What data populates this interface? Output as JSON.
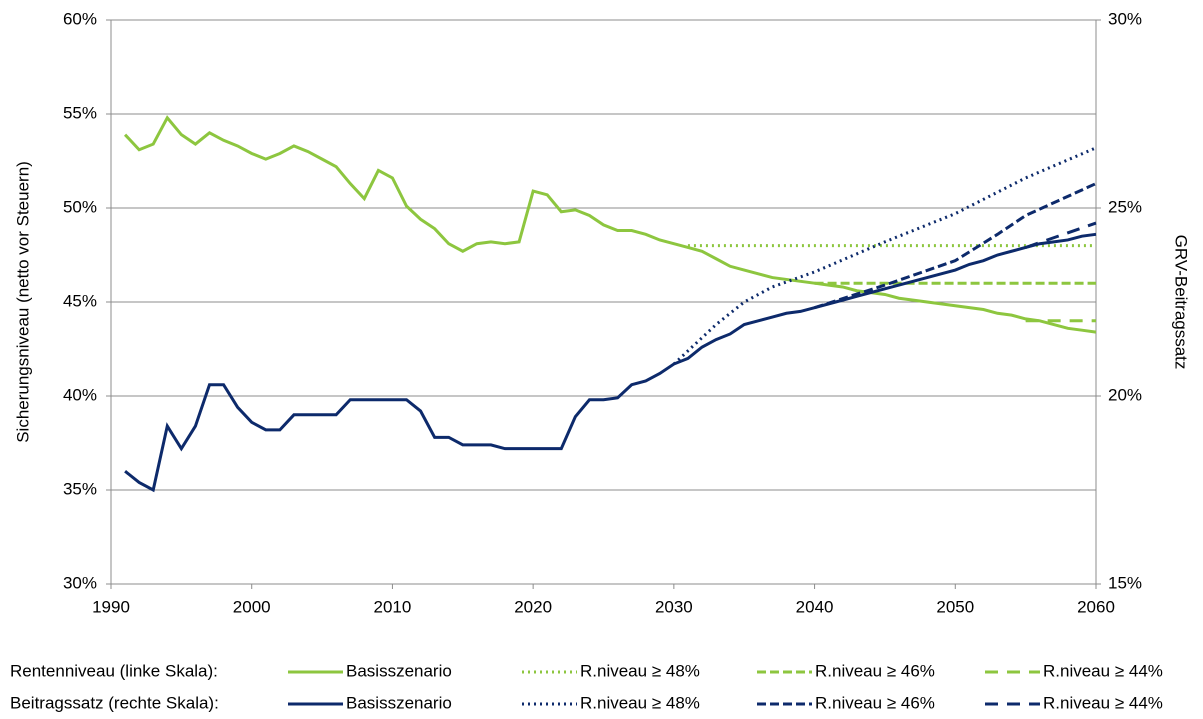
{
  "chart_data": {
    "type": "line",
    "ylabel": "Sicherungsniveau (netto vor Steuern)",
    "y2label": "GRV-Beitragssatz",
    "xlim": [
      1990,
      2060
    ],
    "xticks": [
      1990,
      2000,
      2010,
      2020,
      2030,
      2040,
      2050,
      2060
    ],
    "ylim": [
      30,
      60
    ],
    "yticks": [
      {
        "value": 30,
        "label": "30%"
      },
      {
        "value": 35,
        "label": "35%"
      },
      {
        "value": 40,
        "label": "40%"
      },
      {
        "value": 45,
        "label": "45%"
      },
      {
        "value": 50,
        "label": "50%"
      },
      {
        "value": 55,
        "label": "55%"
      },
      {
        "value": 60,
        "label": "60%"
      }
    ],
    "y2lim": [
      15,
      30
    ],
    "y2ticks": [
      {
        "value": 15,
        "label": "15%"
      },
      {
        "value": 20,
        "label": "20%"
      },
      {
        "value": 25,
        "label": "25%"
      },
      {
        "value": 30,
        "label": "30%"
      }
    ],
    "grid": true,
    "legend": "bottom",
    "x": [
      1991,
      1992,
      1993,
      1994,
      1995,
      1996,
      1997,
      1998,
      1999,
      2000,
      2001,
      2002,
      2003,
      2004,
      2005,
      2006,
      2007,
      2008,
      2009,
      2010,
      2011,
      2012,
      2013,
      2014,
      2015,
      2016,
      2017,
      2018,
      2019,
      2020,
      2021,
      2022,
      2023,
      2024,
      2025,
      2026,
      2027,
      2028,
      2029,
      2030,
      2031,
      2032,
      2033,
      2034,
      2035,
      2036,
      2037,
      2038,
      2039,
      2040,
      2041,
      2042,
      2043,
      2044,
      2045,
      2046,
      2047,
      2048,
      2049,
      2050,
      2051,
      2052,
      2053,
      2054,
      2055,
      2056,
      2057,
      2058,
      2059,
      2060
    ],
    "series_groups": [
      {
        "label": "Rentenniveau (linke Skala):",
        "axis": "y",
        "color": "#8dc63f",
        "series": [
          {
            "name": "Basisszenario",
            "style": "solid",
            "values": [
              53.9,
              53.1,
              53.4,
              54.8,
              53.9,
              53.4,
              54.0,
              53.6,
              53.3,
              52.9,
              52.6,
              52.9,
              53.3,
              53.0,
              52.6,
              52.2,
              51.3,
              50.5,
              52.0,
              51.6,
              50.1,
              49.4,
              48.9,
              48.1,
              47.7,
              48.1,
              48.2,
              48.1,
              48.2,
              50.9,
              50.7,
              49.8,
              49.9,
              49.6,
              49.1,
              48.8,
              48.8,
              48.6,
              48.3,
              48.1,
              47.9,
              47.7,
              47.3,
              46.9,
              46.7,
              46.5,
              46.3,
              46.2,
              46.1,
              46.0,
              45.9,
              45.8,
              45.6,
              45.5,
              45.4,
              45.2,
              45.1,
              45.0,
              44.9,
              44.8,
              44.7,
              44.6,
              44.4,
              44.3,
              44.1,
              44.0,
              43.8,
              43.6,
              43.5,
              43.4
            ]
          },
          {
            "name": "R.niveau ≥ 48%",
            "style": "dotted",
            "x": [
              2031,
              2060
            ],
            "values": [
              48,
              48
            ]
          },
          {
            "name": "R.niveau ≥ 46%",
            "style": "dashed",
            "x": [
              2040,
              2060
            ],
            "values": [
              46,
              46
            ]
          },
          {
            "name": "R.niveau ≥ 44%",
            "style": "longdash",
            "x": [
              2055,
              2060
            ],
            "values": [
              44,
              44
            ]
          }
        ]
      },
      {
        "label": "Beitragssatz (rechte Skala):",
        "axis": "y2",
        "color": "#0d2a6b",
        "series": [
          {
            "name": "Basisszenario",
            "style": "solid",
            "values": [
              18.0,
              17.7,
              17.5,
              19.2,
              18.6,
              19.2,
              20.3,
              20.3,
              19.7,
              19.3,
              19.1,
              19.1,
              19.5,
              19.5,
              19.5,
              19.5,
              19.9,
              19.9,
              19.9,
              19.9,
              19.9,
              19.6,
              18.9,
              18.9,
              18.7,
              18.7,
              18.7,
              18.6,
              18.6,
              18.6,
              18.6,
              18.6,
              19.45,
              19.9,
              19.9,
              19.95,
              20.3,
              20.4,
              20.6,
              20.85,
              21.0,
              21.3,
              21.5,
              21.65,
              21.9,
              22.0,
              22.1,
              22.2,
              22.25,
              22.35,
              22.45,
              22.55,
              22.65,
              22.75,
              22.85,
              22.95,
              23.05,
              23.15,
              23.25,
              23.35,
              23.5,
              23.6,
              23.75,
              23.85,
              23.95,
              24.05,
              24.1,
              24.15,
              24.25,
              24.3
            ]
          },
          {
            "name": "R.niveau ≥ 48%",
            "style": "dotted",
            "x": [
              2030,
              2033,
              2035,
              2037,
              2040,
              2045,
              2050,
              2055,
              2060
            ],
            "values": [
              20.85,
              21.9,
              22.5,
              22.9,
              23.3,
              24.1,
              24.85,
              25.8,
              26.6
            ]
          },
          {
            "name": "R.niveau ≥ 46%",
            "style": "dashed",
            "x": [
              2040,
              2045,
              2050,
              2053,
              2055,
              2060
            ],
            "values": [
              22.35,
              22.95,
              23.6,
              24.3,
              24.8,
              25.65
            ]
          },
          {
            "name": "R.niveau ≥ 44%",
            "style": "longdash",
            "x": [
              2055,
              2060
            ],
            "values": [
              23.95,
              24.6
            ]
          }
        ]
      }
    ]
  }
}
